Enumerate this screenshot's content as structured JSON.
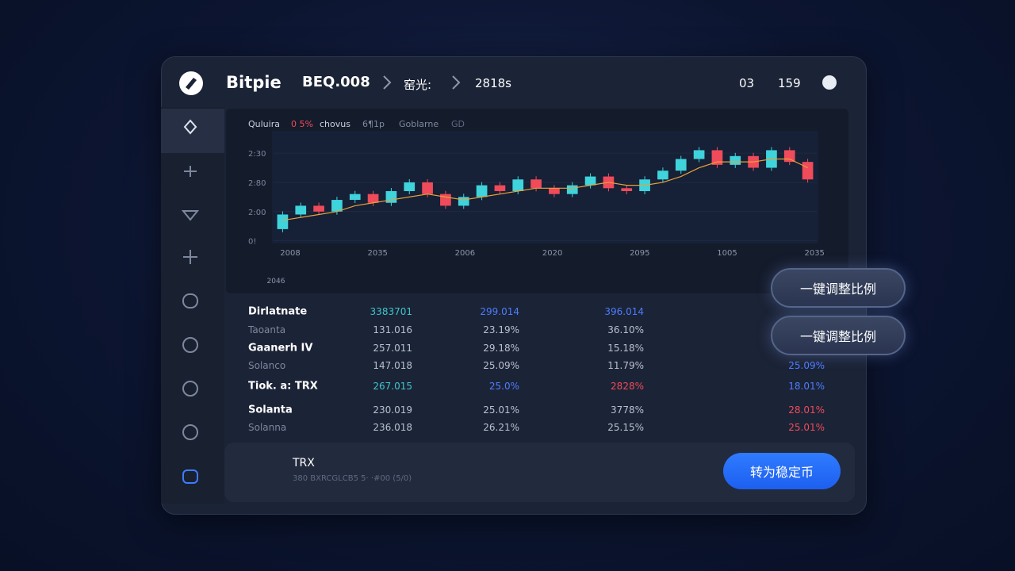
{
  "header": {
    "brand": "Bitpie",
    "pair": "BEQ.008",
    "crumb1": "窑光:",
    "crumb2": "2818s",
    "stat1": "03",
    "stat2": "159"
  },
  "chart": {
    "type": "candlestick",
    "legend": [
      "Quluira",
      "0 5%",
      "chovus",
      "6¶1p",
      "Goblarne",
      "GD"
    ],
    "ylim": [
      -2,
      36
    ],
    "yticks": [
      {
        "value": 30,
        "label": "2:30"
      },
      {
        "value": 20,
        "label": "2:80"
      },
      {
        "value": 10,
        "label": "2:00"
      },
      {
        "value": 0,
        "label": "0!"
      }
    ],
    "categories": [
      "2008",
      "2035",
      "2006",
      "2020",
      "2095",
      "1005",
      "2035"
    ],
    "x_footer": "2046",
    "open": [
      4,
      9,
      12,
      10,
      14,
      16,
      13,
      17,
      20,
      16,
      12,
      15,
      19,
      17,
      21,
      18,
      16,
      19,
      22,
      18,
      17,
      21,
      24,
      28,
      31,
      26,
      29,
      25,
      31,
      27
    ],
    "close": [
      9,
      12,
      10,
      14,
      16,
      13,
      17,
      20,
      16,
      12,
      15,
      19,
      17,
      21,
      18,
      16,
      19,
      22,
      18,
      17,
      21,
      24,
      28,
      31,
      26,
      29,
      25,
      31,
      27,
      21
    ],
    "ma": [
      7,
      8,
      9,
      10,
      12,
      13,
      14,
      15,
      16,
      15,
      14,
      15,
      16,
      17,
      18,
      18,
      18,
      19,
      20,
      19,
      19,
      20,
      22,
      25,
      27,
      27,
      27,
      28,
      28,
      25
    ],
    "up_color": "#3fd3dc",
    "down_color": "#ef4b5a",
    "ma_color": "#e8a13a"
  },
  "table": {
    "rows": [
      [
        "Dirlatnate",
        "3383701",
        "299.014",
        "396.014"
      ],
      [
        "Taoanta",
        "131.016",
        "23.19%",
        "36.10%"
      ],
      [
        "Gaanerh IV",
        "257.011",
        "29.18%",
        "15.18%"
      ],
      [
        "Solanco",
        "147.018",
        "25.09%",
        "11.79%",
        "25.09%"
      ],
      [
        "Tiok. a: TRX",
        "267.015",
        "25.0%",
        "2828%",
        "18.01%"
      ],
      [
        "Solanta",
        "230.019",
        "25.01%",
        "3778%",
        "28.01%"
      ],
      [
        "Solanna",
        "236.018",
        "26.21%",
        "25.15%",
        "25.01%"
      ]
    ]
  },
  "buttons": {
    "rebalance1": "一键调整比例",
    "rebalance2": "一键调整比例",
    "convert": "转为稳定币"
  },
  "asset": {
    "name": "TRX",
    "detail": "380 BXRCGLCB5 5· ·#00 (5/0)"
  }
}
